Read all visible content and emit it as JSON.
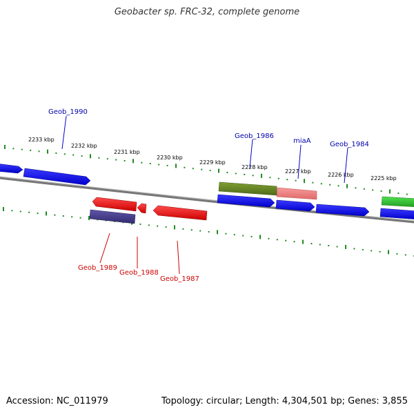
{
  "title": "Geobacter sp. FRC-32, complete genome",
  "accession": "Accession: NC_011979",
  "summary": "Topology: circular; Length: 4,304,501 bp; Genes: 3,855",
  "colors": {
    "backbone": "#8a8a8a",
    "tick": "#1f8a1f",
    "forward_label": "#0000aa",
    "reverse_label": "#cc0000",
    "scale_text": "#000000"
  },
  "scale_labels": [
    "2233 kbp",
    "2232 kbp",
    "2231 kbp",
    "2230 kbp",
    "2229 kbp",
    "2228 kbp",
    "2227 kbp",
    "2226 kbp",
    "2225 kbp"
  ],
  "genes_forward": [
    {
      "label": "",
      "color": "#0000ff",
      "strand": "+"
    },
    {
      "label": "Geob_1990",
      "color": "#0000ff",
      "strand": "+"
    },
    {
      "label": "Geob_1986",
      "color": "#6b8e23",
      "strand": "+"
    },
    {
      "label": "miaA",
      "color": "#f08080",
      "strand": "+"
    },
    {
      "label": "",
      "color": "#0000ff",
      "strand": "+"
    },
    {
      "label": "",
      "color": "#0000ff",
      "strand": "+"
    },
    {
      "label": "Geob_1984",
      "color": "#0000ff",
      "strand": "+"
    },
    {
      "label": "",
      "color": "#0000ff",
      "strand": "+"
    },
    {
      "label": "",
      "color": "#32cd32",
      "strand": "+"
    }
  ],
  "genes_reverse": [
    {
      "label": "Geob_1989",
      "color": "#ff0000",
      "strand": "-"
    },
    {
      "label": "",
      "color": "#483d8b",
      "strand": "-"
    },
    {
      "label": "Geob_1988",
      "color": "#ff0000",
      "strand": "-"
    },
    {
      "label": "Geob_1987",
      "color": "#ff0000",
      "strand": "-"
    }
  ]
}
